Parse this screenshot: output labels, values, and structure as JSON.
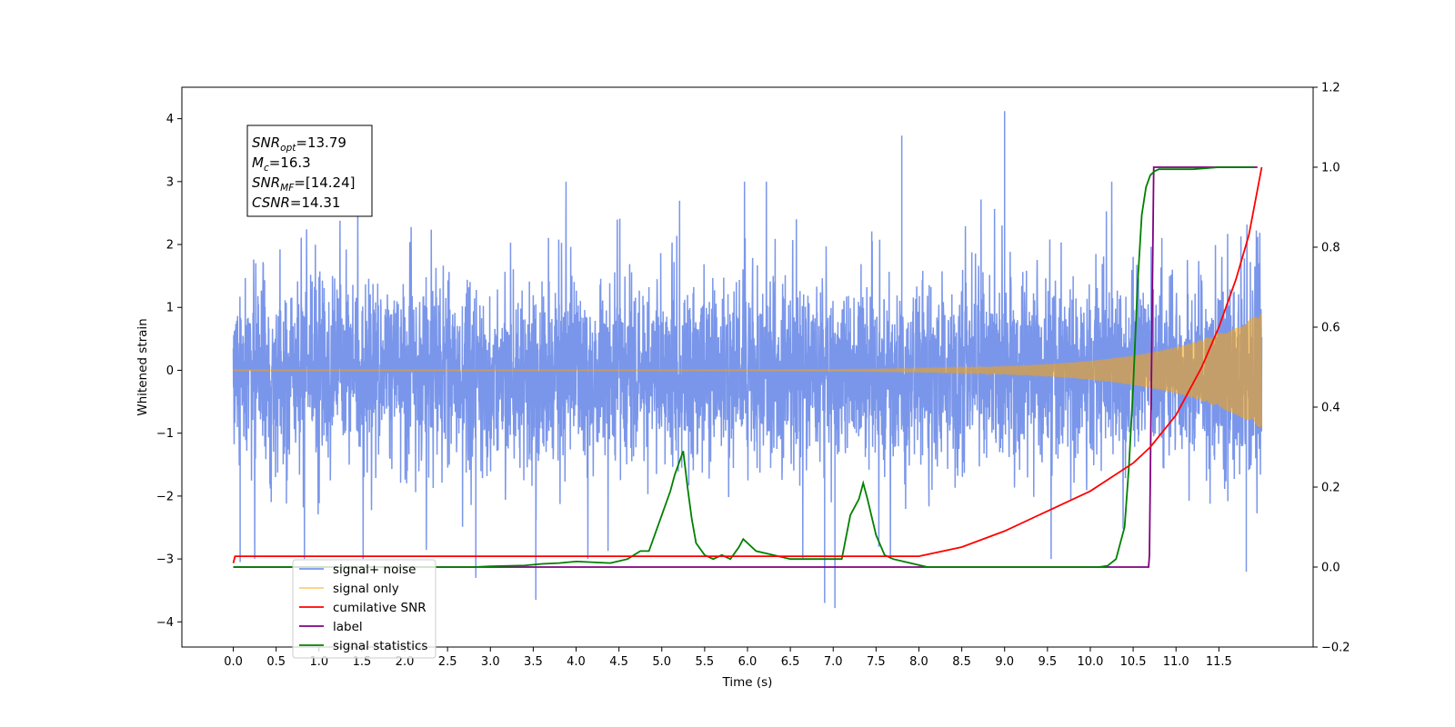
{
  "chart_data": {
    "type": "line",
    "xlabel": "Time (s)",
    "ylabel_left": "Whitened strain",
    "ylabel_right": "",
    "xlim": [
      -0.6,
      12.6
    ],
    "ylim_left": [
      -4.4,
      4.5
    ],
    "ylim_right": [
      -0.2,
      1.2
    ],
    "xticks": [
      0.0,
      0.5,
      1.0,
      1.5,
      2.0,
      2.5,
      3.0,
      3.5,
      4.0,
      4.5,
      5.0,
      5.5,
      6.0,
      6.5,
      7.0,
      7.5,
      8.0,
      8.5,
      9.0,
      9.5,
      10.0,
      10.5,
      11.0,
      11.5
    ],
    "xtick_labels": [
      "0.0",
      "0.5",
      "1.0",
      "1.5",
      "2.0",
      "2.5",
      "3.0",
      "3.5",
      "4.0",
      "4.5",
      "5.0",
      "5.5",
      "6.0",
      "6.5",
      "7.0",
      "7.5",
      "8.0",
      "8.5",
      "9.0",
      "9.5",
      "10.0",
      "10.5",
      "11.0",
      "11.5"
    ],
    "yticks_left": [
      -4,
      -3,
      -2,
      -1,
      0,
      1,
      2,
      3,
      4
    ],
    "ytick_labels_left": [
      "−4",
      "−3",
      "−2",
      "−1",
      "0",
      "1",
      "2",
      "3",
      "4"
    ],
    "yticks_right": [
      -0.2,
      0.0,
      0.2,
      0.4,
      0.6,
      0.8,
      1.0,
      1.2
    ],
    "ytick_labels_right": [
      "−0.2",
      "0.0",
      "0.2",
      "0.4",
      "0.6",
      "0.8",
      "1.0",
      "1.2"
    ],
    "grid": false,
    "legend_position": "lower-left",
    "info_box": {
      "lines": [
        {
          "base": "SNR",
          "sub": "opt",
          "value": "=13.79"
        },
        {
          "base": "M",
          "sub": "c",
          "value": "=16.3"
        },
        {
          "base": "SNR",
          "sub": "MF",
          "value": "=[14.24]"
        },
        {
          "base": "CSNR",
          "sub": "",
          "value": "=14.31"
        }
      ]
    },
    "series": [
      {
        "name": "signal+ noise",
        "axis": "left",
        "color": "#4169e1",
        "kind": "noise-band",
        "x_range": [
          0.0,
          12.0
        ],
        "typical_range": [
          -1.5,
          1.5
        ],
        "spike_extremes": [
          {
            "x": 2.83,
            "y": -3.3
          },
          {
            "x": 3.53,
            "y": -3.65
          },
          {
            "x": 6.9,
            "y": -3.7
          },
          {
            "x": 7.02,
            "y": -3.78
          },
          {
            "x": 7.8,
            "y": 3.73
          },
          {
            "x": 9.0,
            "y": 4.12
          },
          {
            "x": 11.82,
            "y": -3.2
          },
          {
            "x": 0.08,
            "y": -3.05
          }
        ]
      },
      {
        "name": "signal only",
        "axis": "left",
        "color": "#ffa500",
        "kind": "chirp",
        "amplitude_end": 0.93,
        "x_range": [
          0.0,
          12.0
        ]
      },
      {
        "name": "cumilative SNR",
        "axis": "right",
        "color": "#ff0000",
        "x": [
          0.0,
          0.02,
          8.0,
          8.5,
          9.0,
          9.5,
          10.0,
          10.5,
          10.7,
          11.0,
          11.3,
          11.5,
          11.7,
          11.85,
          12.0
        ],
        "y": [
          0.01,
          0.027,
          0.027,
          0.05,
          0.09,
          0.14,
          0.19,
          0.26,
          0.3,
          0.38,
          0.5,
          0.6,
          0.72,
          0.83,
          1.0
        ]
      },
      {
        "name": "label",
        "axis": "right",
        "color": "#800080",
        "x": [
          0.0,
          10.68,
          10.69,
          10.74,
          11.95
        ],
        "y": [
          0.0,
          0.0,
          0.03,
          1.0,
          1.0
        ]
      },
      {
        "name": "signal statistics",
        "axis": "right",
        "color": "#008000",
        "x": [
          0.0,
          2.8,
          3.0,
          3.4,
          3.6,
          3.8,
          4.0,
          4.2,
          4.4,
          4.6,
          4.75,
          4.85,
          5.0,
          5.1,
          5.15,
          5.2,
          5.25,
          5.3,
          5.35,
          5.4,
          5.5,
          5.6,
          5.7,
          5.8,
          5.9,
          5.95,
          6.1,
          6.3,
          6.5,
          6.7,
          6.9,
          7.1,
          7.2,
          7.3,
          7.35,
          7.4,
          7.5,
          7.6,
          7.7,
          7.9,
          8.1,
          8.5,
          10.1,
          10.2,
          10.3,
          10.4,
          10.45,
          10.5,
          10.55,
          10.6,
          10.65,
          10.7,
          10.75,
          10.8,
          11.0,
          11.2,
          11.5,
          11.9
        ],
        "y": [
          0.0,
          0.0,
          0.002,
          0.004,
          0.008,
          0.01,
          0.014,
          0.012,
          0.01,
          0.02,
          0.04,
          0.04,
          0.13,
          0.19,
          0.23,
          0.26,
          0.29,
          0.2,
          0.12,
          0.06,
          0.03,
          0.02,
          0.03,
          0.02,
          0.05,
          0.07,
          0.04,
          0.03,
          0.02,
          0.02,
          0.02,
          0.02,
          0.13,
          0.17,
          0.21,
          0.17,
          0.08,
          0.03,
          0.02,
          0.01,
          0.0,
          0.0,
          0.0,
          0.003,
          0.02,
          0.1,
          0.25,
          0.45,
          0.7,
          0.88,
          0.95,
          0.98,
          0.99,
          0.995,
          0.995,
          0.995,
          1.0,
          1.0
        ]
      }
    ],
    "legend": [
      {
        "name": "signal+ noise",
        "color": "#4169e1",
        "alpha": 0.7
      },
      {
        "name": "signal only",
        "color": "#ffa500",
        "alpha": 0.55
      },
      {
        "name": "cumilative SNR",
        "color": "#ff0000",
        "alpha": 1
      },
      {
        "name": "label",
        "color": "#800080",
        "alpha": 1
      },
      {
        "name": "signal statistics",
        "color": "#008000",
        "alpha": 1
      }
    ]
  }
}
